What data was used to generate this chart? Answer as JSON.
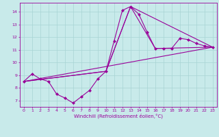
{
  "xlabel": "Windchill (Refroidissement éolien,°C)",
  "background_color": "#c8eaea",
  "grid_color": "#a8d4d4",
  "line_color": "#990099",
  "xlim": [
    -0.5,
    23.5
  ],
  "ylim": [
    6.5,
    14.7
  ],
  "yticks": [
    7,
    8,
    9,
    10,
    11,
    12,
    13,
    14
  ],
  "xticks": [
    0,
    1,
    2,
    3,
    4,
    5,
    6,
    7,
    8,
    9,
    10,
    11,
    12,
    13,
    14,
    15,
    16,
    17,
    18,
    19,
    20,
    21,
    22,
    23
  ],
  "series1_x": [
    0,
    1,
    2,
    3,
    4,
    5,
    6,
    7,
    8,
    9,
    10,
    11,
    12,
    13,
    14,
    15,
    16,
    17,
    18,
    19,
    20,
    21,
    22,
    23
  ],
  "series1_y": [
    8.5,
    9.1,
    8.7,
    8.5,
    7.5,
    7.2,
    6.8,
    7.3,
    7.8,
    8.7,
    9.3,
    11.7,
    14.1,
    14.4,
    13.8,
    12.4,
    11.1,
    11.1,
    11.1,
    11.9,
    11.8,
    11.5,
    11.3,
    11.2
  ],
  "series2_x": [
    0,
    23
  ],
  "series2_y": [
    8.5,
    11.2
  ],
  "series3_x": [
    0,
    10,
    13,
    23
  ],
  "series3_y": [
    8.5,
    9.3,
    14.4,
    11.2
  ],
  "series4_x": [
    0,
    10,
    13,
    16,
    23
  ],
  "series4_y": [
    8.5,
    9.3,
    14.4,
    11.1,
    11.2
  ]
}
